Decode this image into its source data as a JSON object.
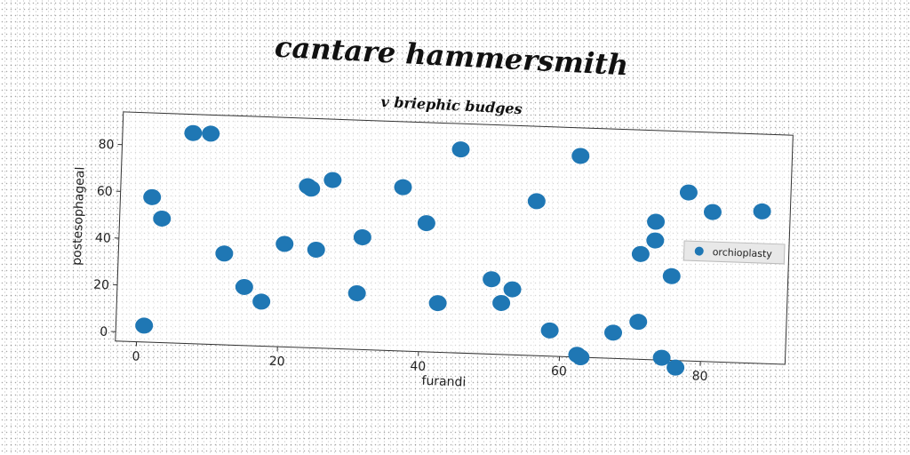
{
  "figure": {
    "title": "cantare hammersmith",
    "subtitle": "v briephic budges"
  },
  "chart_data": {
    "type": "scatter",
    "title": "v briephic budges",
    "xlabel": "furandi",
    "ylabel": "postesophageal",
    "xlim": [
      -3,
      92
    ],
    "ylim": [
      -4,
      94
    ],
    "xticks": [
      0,
      20,
      40,
      60,
      80
    ],
    "yticks": [
      0,
      20,
      40,
      60,
      80
    ],
    "grid": false,
    "legend_position": "right",
    "series": [
      {
        "name": "orchioplasty",
        "color": "#1f77b4",
        "points": [
          [
            1,
            3
          ],
          [
            1.5,
            58
          ],
          [
            3,
            49
          ],
          [
            7,
            86
          ],
          [
            9.5,
            86
          ],
          [
            12,
            35
          ],
          [
            15,
            21
          ],
          [
            17.5,
            15
          ],
          [
            20.5,
            40
          ],
          [
            23.5,
            65
          ],
          [
            24,
            64
          ],
          [
            25,
            38
          ],
          [
            27,
            68
          ],
          [
            31,
            20
          ],
          [
            31.5,
            44
          ],
          [
            37,
            66
          ],
          [
            40.5,
            51
          ],
          [
            42.5,
            17
          ],
          [
            45,
            83
          ],
          [
            50,
            28
          ],
          [
            51.5,
            18
          ],
          [
            53,
            24
          ],
          [
            56,
            62
          ],
          [
            58.5,
            7
          ],
          [
            62,
            82
          ],
          [
            62.5,
            -3
          ],
          [
            63,
            -4
          ],
          [
            67.5,
            7
          ],
          [
            71,
            12
          ],
          [
            71,
            41
          ],
          [
            73,
            47
          ],
          [
            73,
            55
          ],
          [
            74.5,
            -3
          ],
          [
            75.5,
            32
          ],
          [
            76.5,
            -7
          ],
          [
            77.5,
            68
          ],
          [
            81,
            60
          ],
          [
            88,
            61
          ]
        ]
      }
    ]
  }
}
